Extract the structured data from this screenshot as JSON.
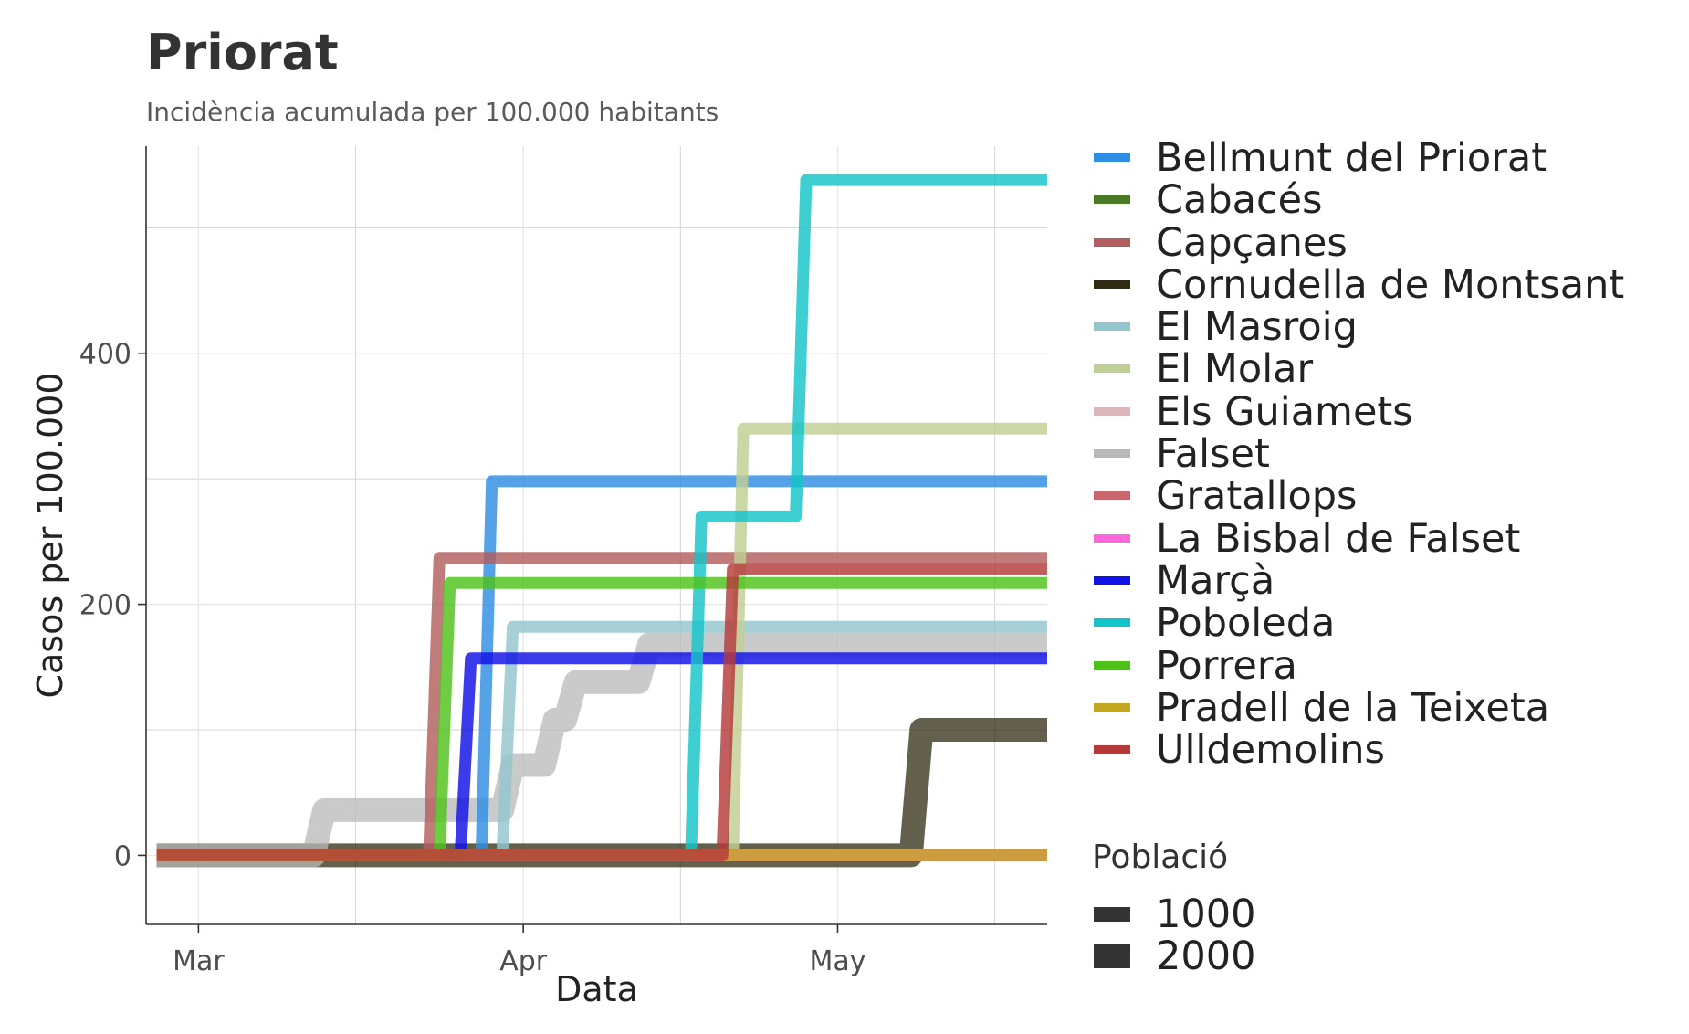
{
  "chart_data": {
    "type": "line",
    "title": "Priorat",
    "subtitle": "Incidència acumulada per 100.000 habitants",
    "xlabel": "Data",
    "ylabel": "Casos per 100.000",
    "x_ticks": [
      "Mar",
      "Apr",
      "May"
    ],
    "y_ticks": [
      0,
      200,
      400
    ],
    "xlim": [
      "2020-02-25",
      "2020-05-21"
    ],
    "ylim": [
      -55,
      565
    ],
    "grid": true,
    "legend_position": "right",
    "series": [
      {
        "name": "Bellmunt del Priorat",
        "color": "#2f8de4",
        "pop": 1000,
        "points": [
          [
            "2020-02-26",
            0
          ],
          [
            "2020-03-28",
            0
          ],
          [
            "2020-03-29",
            298
          ],
          [
            "2020-05-21",
            298
          ]
        ]
      },
      {
        "name": "Cabacés",
        "color": "#4b7a25",
        "pop": 1000,
        "points": [
          [
            "2020-02-26",
            0
          ],
          [
            "2020-05-21",
            0
          ]
        ]
      },
      {
        "name": "Capçanes",
        "color": "#b25e5e",
        "pop": 1000,
        "points": [
          [
            "2020-02-26",
            0
          ],
          [
            "2020-03-23",
            0
          ],
          [
            "2020-03-24",
            237
          ],
          [
            "2020-05-21",
            237
          ]
        ]
      },
      {
        "name": "Cornudella de Montsant",
        "color": "#2f2c12",
        "pop": 2000,
        "points": [
          [
            "2020-02-26",
            0
          ],
          [
            "2020-05-08",
            0
          ],
          [
            "2020-05-09",
            100
          ],
          [
            "2020-05-21",
            100
          ]
        ]
      },
      {
        "name": "El Masroig",
        "color": "#93c6cc",
        "pop": 1000,
        "points": [
          [
            "2020-02-26",
            0
          ],
          [
            "2020-03-30",
            0
          ],
          [
            "2020-03-31",
            182
          ],
          [
            "2020-05-21",
            182
          ]
        ]
      },
      {
        "name": "El Molar",
        "color": "#bfcf93",
        "pop": 1000,
        "points": [
          [
            "2020-02-26",
            0
          ],
          [
            "2020-04-21",
            0
          ],
          [
            "2020-04-22",
            340
          ],
          [
            "2020-05-21",
            340
          ]
        ]
      },
      {
        "name": "Els Guiamets",
        "color": "#dcb5b8",
        "pop": 1000,
        "points": [
          [
            "2020-02-26",
            0
          ],
          [
            "2020-05-21",
            0
          ]
        ]
      },
      {
        "name": "Falset",
        "color": "#b8b8b8",
        "pop": 2000,
        "points": [
          [
            "2020-02-26",
            0
          ],
          [
            "2020-03-12",
            0
          ],
          [
            "2020-03-13",
            36
          ],
          [
            "2020-03-30",
            36
          ],
          [
            "2020-03-31",
            72
          ],
          [
            "2020-04-03",
            72
          ],
          [
            "2020-04-04",
            108
          ],
          [
            "2020-04-05",
            108
          ],
          [
            "2020-04-06",
            138
          ],
          [
            "2020-04-12",
            138
          ],
          [
            "2020-04-13",
            168
          ],
          [
            "2020-05-21",
            168
          ]
        ]
      },
      {
        "name": "Gratallops",
        "color": "#c7666c",
        "pop": 1000,
        "points": [
          [
            "2020-02-26",
            0
          ],
          [
            "2020-05-21",
            0
          ]
        ]
      },
      {
        "name": "La Bisbal de Falset",
        "color": "#ff66d9",
        "pop": 1000,
        "points": [
          [
            "2020-02-26",
            0
          ],
          [
            "2020-05-21",
            0
          ]
        ]
      },
      {
        "name": "Marçà",
        "color": "#1010e8",
        "pop": 1000,
        "points": [
          [
            "2020-02-26",
            0
          ],
          [
            "2020-03-26",
            0
          ],
          [
            "2020-03-27",
            157
          ],
          [
            "2020-05-21",
            157
          ]
        ]
      },
      {
        "name": "Poboleda",
        "color": "#14c4c8",
        "pop": 1000,
        "points": [
          [
            "2020-02-26",
            0
          ],
          [
            "2020-04-17",
            0
          ],
          [
            "2020-04-18",
            270
          ],
          [
            "2020-04-27",
            270
          ],
          [
            "2020-04-28",
            538
          ],
          [
            "2020-05-21",
            538
          ]
        ]
      },
      {
        "name": "Porrera",
        "color": "#4fc21a",
        "pop": 1000,
        "points": [
          [
            "2020-02-26",
            0
          ],
          [
            "2020-03-24",
            0
          ],
          [
            "2020-03-25",
            217
          ],
          [
            "2020-05-21",
            217
          ]
        ]
      },
      {
        "name": "Pradell de la Teixeta",
        "color": "#c2a722",
        "pop": 1000,
        "points": [
          [
            "2020-02-26",
            0
          ],
          [
            "2020-05-21",
            0
          ]
        ]
      },
      {
        "name": "Ulldemolins",
        "color": "#b43a3a",
        "pop": 1000,
        "points": [
          [
            "2020-02-26",
            0
          ],
          [
            "2020-04-20",
            0
          ],
          [
            "2020-04-21",
            228
          ],
          [
            "2020-05-21",
            228
          ]
        ]
      }
    ],
    "size_legend": {
      "title": "Població",
      "entries": [
        "1000",
        "2000"
      ]
    }
  }
}
